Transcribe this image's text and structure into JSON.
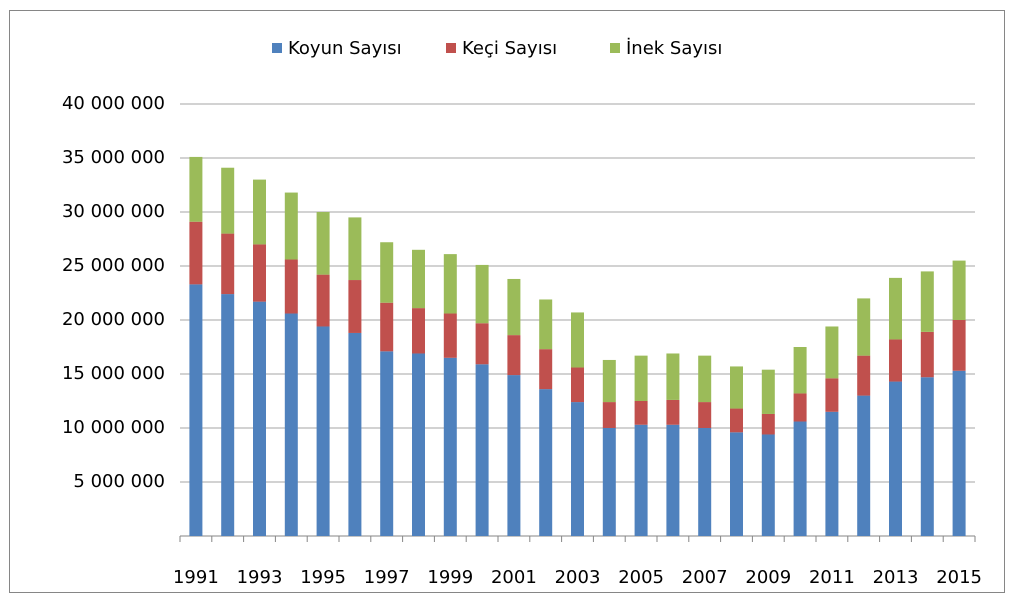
{
  "chart_data": {
    "type": "stacked_bar",
    "categories": [
      "1991",
      null,
      "1993",
      null,
      "1995",
      null,
      "1997",
      null,
      "1999",
      null,
      "2001",
      null,
      "2003",
      null,
      "2005",
      null,
      "2007",
      null,
      "2009",
      null,
      "2011",
      null,
      "2013",
      null,
      "2015"
    ],
    "series": [
      {
        "name": "Koyun Sayısı",
        "color": "#4f81bd",
        "values": [
          23300000,
          22400000,
          21700000,
          20600000,
          19400000,
          18800000,
          17100000,
          16900000,
          16500000,
          15900000,
          14900000,
          13600000,
          12400000,
          10000000,
          10300000,
          10300000,
          10000000,
          9600000,
          9400000,
          10600000,
          11500000,
          13000000,
          14300000,
          14700000,
          15300000
        ]
      },
      {
        "name": "Keçi Sayısı",
        "color": "#c0504d",
        "values": [
          5800000,
          5600000,
          5300000,
          5000000,
          4800000,
          4900000,
          4500000,
          4200000,
          4100000,
          3800000,
          3700000,
          3700000,
          3200000,
          2400000,
          2200000,
          2300000,
          2400000,
          2200000,
          1900000,
          2600000,
          3100000,
          3700000,
          3900000,
          4200000,
          4700000
        ]
      },
      {
        "name": "İnek Sayısı",
        "color": "#9bbb59",
        "values": [
          6000000,
          6100000,
          6000000,
          6200000,
          5800000,
          5800000,
          5600000,
          5400000,
          5500000,
          5400000,
          5200000,
          4600000,
          5100000,
          3900000,
          4200000,
          4300000,
          4300000,
          3900000,
          4100000,
          4300000,
          4800000,
          5300000,
          5700000,
          5600000,
          5500000
        ]
      }
    ],
    "ylim": [
      0,
      40000000
    ],
    "yticks": [
      {
        "value": 5000000,
        "label": "5 000 000"
      },
      {
        "value": 10000000,
        "label": "10 000 000"
      },
      {
        "value": 15000000,
        "label": "15 000 000"
      },
      {
        "value": 20000000,
        "label": "20 000 000"
      },
      {
        "value": 25000000,
        "label": "25 000 000"
      },
      {
        "value": 30000000,
        "label": "30 000 000"
      },
      {
        "value": 35000000,
        "label": "35 000 000"
      },
      {
        "value": 40000000,
        "label": "40 000 000"
      }
    ],
    "grid": true,
    "legend": "top"
  }
}
